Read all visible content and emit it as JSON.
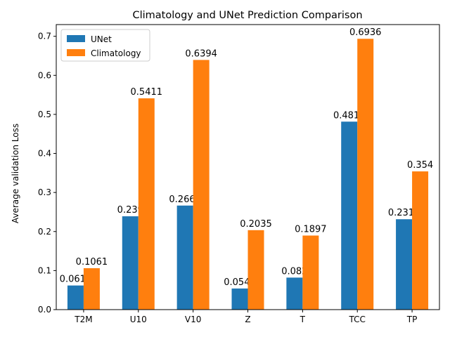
{
  "chart_data": {
    "type": "bar",
    "title": "Climatology and UNet Prediction Comparison",
    "xlabel": "",
    "ylabel": "Average validation Loss",
    "ylim": [
      0,
      0.73
    ],
    "yticks": [
      0.0,
      0.1,
      0.2,
      0.3,
      0.4,
      0.5,
      0.6,
      0.7
    ],
    "ytick_labels": [
      "0.0",
      "0.1",
      "0.2",
      "0.3",
      "0.4",
      "0.5",
      "0.6",
      "0.7"
    ],
    "grid": false,
    "legend_position": "top-left",
    "categories": [
      "T2M",
      "U10",
      "V10",
      "Z",
      "T",
      "TCC",
      "TP"
    ],
    "series": [
      {
        "name": "UNet",
        "color": "#1f77b4",
        "values": [
          0.0618,
          0.239,
          0.2665,
          0.0541,
          0.082,
          0.4814,
          0.2315
        ],
        "value_labels": [
          "0.0618",
          "0.239",
          "0.2665",
          "0.0541",
          "0.082",
          "0.4814",
          "0.2315"
        ]
      },
      {
        "name": "Climatology",
        "color": "#ff7f0e",
        "values": [
          0.1061,
          0.5411,
          0.6394,
          0.2035,
          0.1897,
          0.6936,
          0.354
        ],
        "value_labels": [
          "0.1061",
          "0.5411",
          "0.6394",
          "0.2035",
          "0.1897",
          "0.6936",
          "0.354"
        ]
      }
    ]
  }
}
